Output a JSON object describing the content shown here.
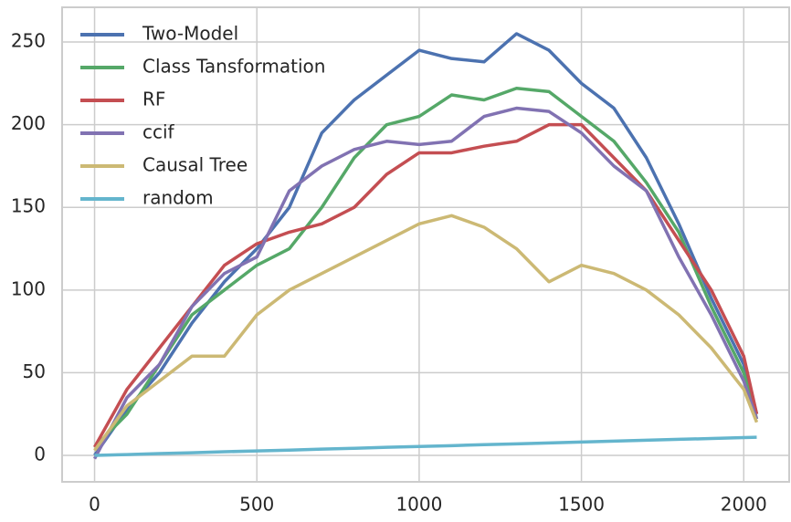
{
  "chart_data": {
    "type": "line",
    "x": [
      0,
      100,
      200,
      300,
      400,
      500,
      600,
      700,
      800,
      900,
      1000,
      1100,
      1200,
      1300,
      1400,
      1500,
      1600,
      1700,
      1800,
      1900,
      2000,
      2040
    ],
    "series": [
      {
        "name": "Two-Model",
        "color": "#4c72b0",
        "values": [
          0,
          28,
          50,
          80,
          105,
          125,
          150,
          195,
          215,
          230,
          245,
          240,
          238,
          255,
          245,
          225,
          210,
          180,
          140,
          95,
          55,
          25
        ]
      },
      {
        "name": "Class Tansformation",
        "color": "#55a868",
        "values": [
          5,
          25,
          55,
          85,
          100,
          115,
          125,
          150,
          180,
          200,
          205,
          218,
          215,
          222,
          220,
          205,
          190,
          165,
          135,
          90,
          50,
          22
        ]
      },
      {
        "name": "RF",
        "color": "#c44e52",
        "values": [
          5,
          40,
          65,
          90,
          115,
          128,
          135,
          140,
          150,
          170,
          183,
          183,
          187,
          190,
          200,
          200,
          180,
          160,
          130,
          100,
          60,
          25
        ]
      },
      {
        "name": "ccif",
        "color": "#8172b2",
        "values": [
          -2,
          35,
          55,
          90,
          110,
          120,
          160,
          175,
          185,
          190,
          188,
          190,
          205,
          210,
          208,
          195,
          175,
          160,
          120,
          85,
          45,
          22
        ]
      },
      {
        "name": "Causal Tree",
        "color": "#ccb974",
        "values": [
          3,
          30,
          45,
          60,
          60,
          85,
          100,
          110,
          120,
          130,
          140,
          145,
          138,
          125,
          105,
          115,
          110,
          100,
          85,
          65,
          40,
          20
        ]
      },
      {
        "name": "random",
        "color": "#64b5cd",
        "values": [
          0,
          0.5,
          1.1,
          1.6,
          2.2,
          2.7,
          3.2,
          3.8,
          4.3,
          4.9,
          5.4,
          5.9,
          6.5,
          7.0,
          7.5,
          8.1,
          8.6,
          9.2,
          9.7,
          10.2,
          10.8,
          11
        ]
      }
    ],
    "xlim": [
      -100,
      2140
    ],
    "ylim": [
      -16,
      271
    ],
    "xticks": [
      0,
      500,
      1000,
      1500,
      2000
    ],
    "yticks": [
      0,
      50,
      100,
      150,
      200,
      250
    ],
    "grid": true,
    "legend": "upper-left"
  }
}
